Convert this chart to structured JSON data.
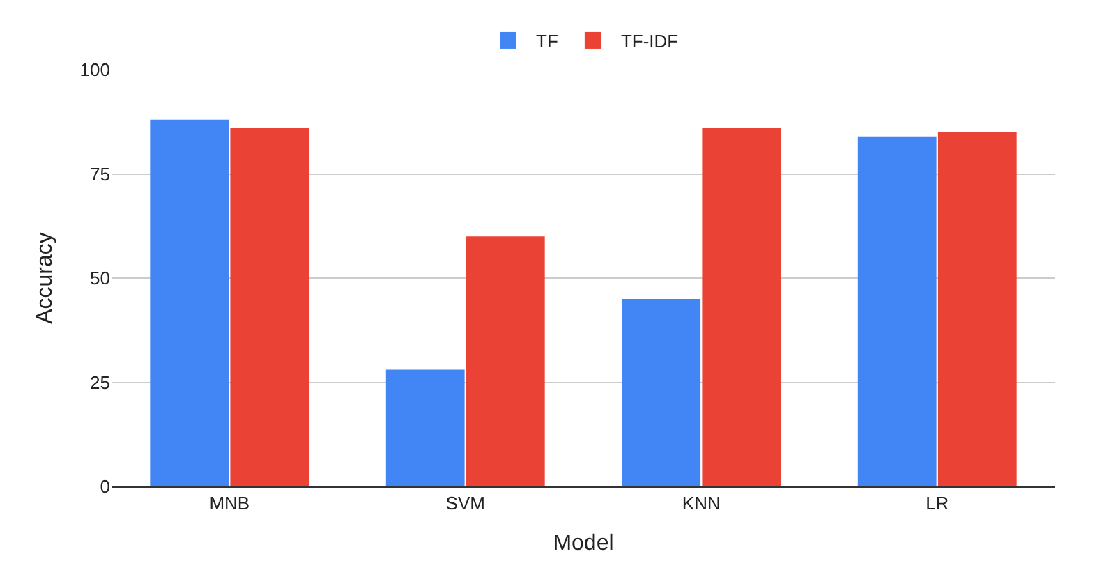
{
  "chart_data": {
    "type": "bar",
    "xlabel": "Model",
    "ylabel": "Accuracy",
    "categories": [
      "MNB",
      "SVM",
      "KNN",
      "LR"
    ],
    "series": [
      {
        "name": "TF",
        "color": "#4285f4",
        "values": [
          88,
          28,
          45,
          84
        ]
      },
      {
        "name": "TF-IDF",
        "color": "#ea4335",
        "values": [
          86,
          60,
          86,
          85
        ]
      }
    ],
    "ylim": [
      0,
      100
    ],
    "yticks": [
      0,
      25,
      50,
      75,
      100
    ],
    "grid": "y",
    "legend": "top"
  }
}
